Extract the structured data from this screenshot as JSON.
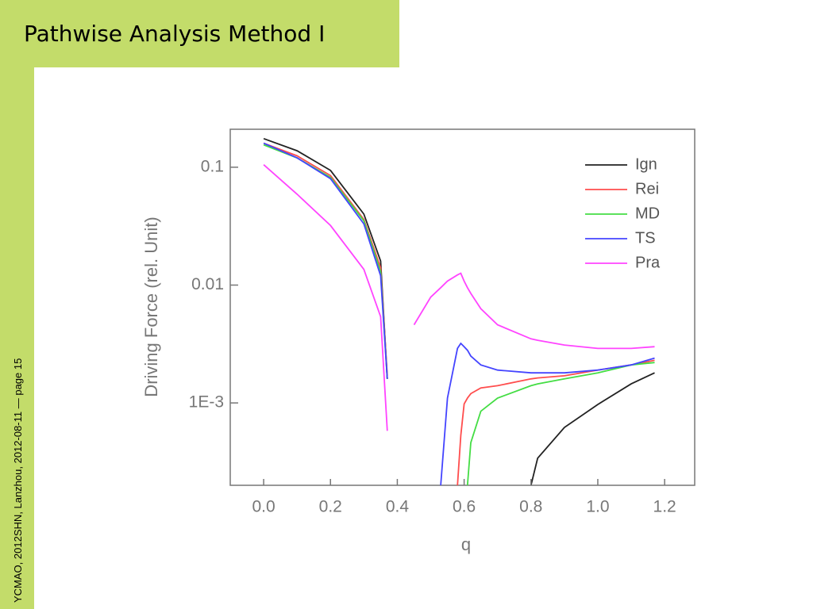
{
  "slide": {
    "title": "Pathwise Analysis Method Ⅰ",
    "footer": "YCMAO, 2012SHN, Lanzhou, 2012-08-11 — page 15"
  },
  "chart_data": {
    "type": "line",
    "xlabel": "q",
    "ylabel": "Driving Force (rel. Unit)",
    "yscale": "log",
    "legend": "upper right",
    "xlim": [
      -0.1,
      1.29
    ],
    "ylim": [
      0.0002,
      0.21
    ],
    "xticks": [
      {
        "value": 0,
        "label": "0.0"
      },
      0.2,
      0.4,
      0.6,
      0.8,
      {
        "value": 1,
        "label": "1.0"
      },
      1.2
    ],
    "yticks": [
      {
        "value": 0.001,
        "label": "1E-3"
      },
      0.01,
      0.1
    ],
    "x": [
      0,
      0.1,
      0.2,
      0.3,
      0.35,
      0.37,
      0.4,
      0.45,
      0.5,
      0.53,
      0.55,
      0.58,
      0.59,
      0.6,
      0.61,
      0.62,
      0.65,
      0.7,
      0.8,
      0.82,
      0.9,
      1.0,
      1.1,
      1.17
    ],
    "series": [
      {
        "name": "Ign",
        "color": "#222222",
        "values": [
          0.175,
          0.138,
          0.094,
          0.04,
          0.016,
          0.0016,
          null,
          null,
          null,
          null,
          null,
          null,
          null,
          null,
          null,
          null,
          null,
          null,
          0.0002,
          0.00034,
          0.00062,
          0.00097,
          0.00145,
          0.0018
        ]
      },
      {
        "name": "Rei",
        "color": "#ff4d4d",
        "values": [
          0.16,
          0.125,
          0.085,
          0.036,
          0.014,
          0.0017,
          null,
          null,
          null,
          null,
          null,
          0.0002,
          0.00053,
          0.00098,
          0.0011,
          0.0012,
          0.00134,
          0.0014,
          0.0016,
          0.00163,
          0.0017,
          0.0019,
          0.0021,
          0.0023
        ]
      },
      {
        "name": "MD",
        "color": "#44dd44",
        "values": [
          0.155,
          0.12,
          0.082,
          0.035,
          0.013,
          0.0016,
          null,
          null,
          null,
          null,
          null,
          null,
          null,
          null,
          0.0002,
          0.00046,
          0.00085,
          0.0011,
          0.0014,
          0.00145,
          0.0016,
          0.0018,
          0.0021,
          0.0022
        ]
      },
      {
        "name": "TS",
        "color": "#4444ff",
        "values": [
          0.16,
          0.12,
          0.08,
          0.033,
          0.012,
          0.0016,
          null,
          null,
          null,
          0.0002,
          0.0011,
          0.0029,
          0.0032,
          0.003,
          0.0028,
          0.0025,
          0.0021,
          0.0019,
          0.0018,
          0.0018,
          0.0018,
          0.0019,
          0.0021,
          0.0024
        ]
      },
      {
        "name": "Pra",
        "color": "#ff44ff",
        "values": [
          0.105,
          0.059,
          0.032,
          0.0136,
          0.0054,
          0.00058,
          null,
          0.0046,
          0.0079,
          0.0095,
          0.0108,
          0.0122,
          0.0126,
          0.0108,
          0.0095,
          0.0085,
          0.0063,
          0.0046,
          0.0035,
          0.0034,
          0.0031,
          0.0029,
          0.0029,
          0.003
        ]
      }
    ]
  }
}
